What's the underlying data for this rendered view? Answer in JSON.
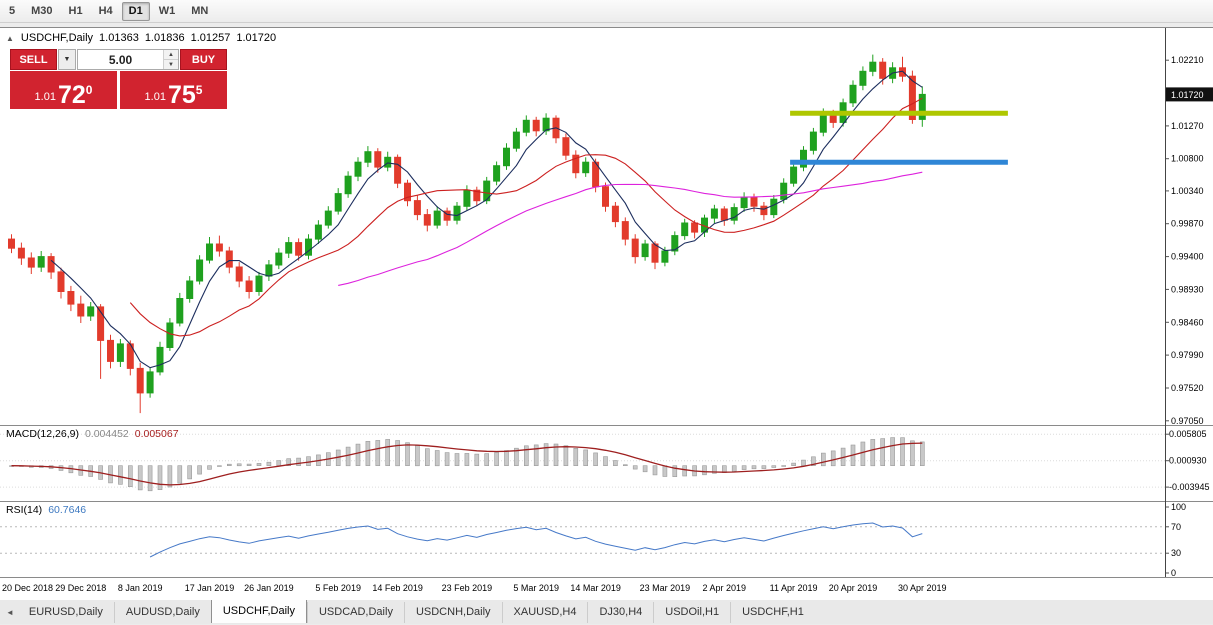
{
  "icons": {
    "collapse_up": "▲",
    "caret_down": "▼",
    "spin_up": "▲",
    "spin_down": "▼",
    "tab_scroll_left": "◄"
  },
  "toolbar": {
    "timeframes": [
      {
        "label": "5",
        "active": false
      },
      {
        "label": "M30",
        "active": false
      },
      {
        "label": "H1",
        "active": false
      },
      {
        "label": "H4",
        "active": false
      },
      {
        "label": "D1",
        "active": true
      },
      {
        "label": "W1",
        "active": false
      },
      {
        "label": "MN",
        "active": false
      }
    ]
  },
  "chart_header": {
    "symbol": "USDCHF,Daily",
    "open": "1.01363",
    "high": "1.01836",
    "low": "1.01257",
    "close": "1.01720"
  },
  "trade_panel": {
    "sell_label": "SELL",
    "buy_label": "BUY",
    "volume": "5.00",
    "sell_quote": {
      "prefix": "1.01",
      "big": "72",
      "sup": "0"
    },
    "buy_quote": {
      "prefix": "1.01",
      "big": "75",
      "sup": "5"
    }
  },
  "chart_data": {
    "type": "candlestick",
    "symbol": "USDCHF",
    "timeframe": "Daily",
    "candles": [
      [
        0.9965,
        0.9972,
        0.9945,
        0.9952
      ],
      [
        0.9952,
        0.996,
        0.9928,
        0.9938
      ],
      [
        0.9938,
        0.9946,
        0.9915,
        0.9925
      ],
      [
        0.9925,
        0.9948,
        0.9918,
        0.994
      ],
      [
        0.994,
        0.9945,
        0.9908,
        0.9918
      ],
      [
        0.9918,
        0.9924,
        0.988,
        0.989
      ],
      [
        0.989,
        0.9898,
        0.9862,
        0.9872
      ],
      [
        0.9872,
        0.9884,
        0.9845,
        0.9855
      ],
      [
        0.9855,
        0.9875,
        0.9848,
        0.9868
      ],
      [
        0.9868,
        0.9872,
        0.9765,
        0.982
      ],
      [
        0.982,
        0.9828,
        0.978,
        0.979
      ],
      [
        0.979,
        0.9822,
        0.9782,
        0.9815
      ],
      [
        0.9815,
        0.982,
        0.977,
        0.978
      ],
      [
        0.978,
        0.9788,
        0.9716,
        0.9745
      ],
      [
        0.9745,
        0.9782,
        0.9738,
        0.9775
      ],
      [
        0.9775,
        0.9818,
        0.977,
        0.981
      ],
      [
        0.981,
        0.9852,
        0.9805,
        0.9845
      ],
      [
        0.9845,
        0.9888,
        0.984,
        0.988
      ],
      [
        0.988,
        0.9912,
        0.9874,
        0.9905
      ],
      [
        0.9905,
        0.9942,
        0.99,
        0.9935
      ],
      [
        0.9935,
        0.9968,
        0.993,
        0.9958
      ],
      [
        0.9958,
        0.997,
        0.994,
        0.9948
      ],
      [
        0.9948,
        0.9954,
        0.9916,
        0.9925
      ],
      [
        0.9925,
        0.9932,
        0.9896,
        0.9905
      ],
      [
        0.9905,
        0.9912,
        0.988,
        0.989
      ],
      [
        0.989,
        0.9918,
        0.9884,
        0.9912
      ],
      [
        0.9912,
        0.9935,
        0.9905,
        0.9928
      ],
      [
        0.9928,
        0.9952,
        0.9922,
        0.9945
      ],
      [
        0.9945,
        0.9968,
        0.9938,
        0.996
      ],
      [
        0.996,
        0.9966,
        0.9934,
        0.9942
      ],
      [
        0.9942,
        0.9972,
        0.9936,
        0.9965
      ],
      [
        0.9965,
        0.9992,
        0.9958,
        0.9985
      ],
      [
        0.9985,
        1.0012,
        0.998,
        1.0005
      ],
      [
        1.0005,
        1.0038,
        1.0,
        1.003
      ],
      [
        1.003,
        1.0062,
        1.0024,
        1.0055
      ],
      [
        1.0055,
        1.0082,
        1.0048,
        1.0075
      ],
      [
        1.0075,
        1.0098,
        1.0068,
        1.009
      ],
      [
        1.009,
        1.0095,
        1.006,
        1.0068
      ],
      [
        1.0068,
        1.009,
        1.0062,
        1.0082
      ],
      [
        1.0082,
        1.0086,
        1.0038,
        1.0045
      ],
      [
        1.0045,
        1.005,
        1.0012,
        1.002
      ],
      [
        1.002,
        1.0028,
        0.9992,
        1.0
      ],
      [
        1.0,
        1.0008,
        0.9976,
        0.9985
      ],
      [
        0.9985,
        1.0012,
        0.998,
        1.0005
      ],
      [
        1.0005,
        1.001,
        0.9984,
        0.9992
      ],
      [
        0.9992,
        1.0018,
        0.9986,
        1.0012
      ],
      [
        1.0012,
        1.0042,
        1.0006,
        1.0035
      ],
      [
        1.0035,
        1.004,
        1.0012,
        1.002
      ],
      [
        1.002,
        1.0054,
        1.0015,
        1.0048
      ],
      [
        1.0048,
        1.0076,
        1.0042,
        1.007
      ],
      [
        1.007,
        1.0102,
        1.0064,
        1.0095
      ],
      [
        1.0095,
        1.0124,
        1.009,
        1.0118
      ],
      [
        1.0118,
        1.0142,
        1.0112,
        1.0135
      ],
      [
        1.0135,
        1.014,
        1.0112,
        1.012
      ],
      [
        1.012,
        1.0145,
        1.0114,
        1.0138
      ],
      [
        1.0138,
        1.0142,
        1.0102,
        1.011
      ],
      [
        1.011,
        1.0116,
        1.0078,
        1.0085
      ],
      [
        1.0085,
        1.0092,
        1.0052,
        1.006
      ],
      [
        1.006,
        1.0082,
        1.0054,
        1.0075
      ],
      [
        1.0075,
        1.008,
        1.0032,
        1.004
      ],
      [
        1.004,
        1.0046,
        1.0004,
        1.0012
      ],
      [
        1.0012,
        1.0018,
        0.9982,
        0.999
      ],
      [
        0.999,
        0.9996,
        0.9956,
        0.9965
      ],
      [
        0.9965,
        0.9972,
        0.993,
        0.994
      ],
      [
        0.994,
        0.9964,
        0.9934,
        0.9958
      ],
      [
        0.9958,
        0.9962,
        0.9922,
        0.9932
      ],
      [
        0.9932,
        0.9954,
        0.9926,
        0.9948
      ],
      [
        0.9948,
        0.9976,
        0.9942,
        0.997
      ],
      [
        0.997,
        0.9994,
        0.9964,
        0.9988
      ],
      [
        0.9988,
        0.9992,
        0.9966,
        0.9975
      ],
      [
        0.9975,
        1.0,
        0.9968,
        0.9995
      ],
      [
        0.9995,
        1.0014,
        0.9988,
        1.0008
      ],
      [
        1.0008,
        1.0012,
        0.9984,
        0.9992
      ],
      [
        0.9992,
        1.0016,
        0.9986,
        1.001
      ],
      [
        1.001,
        1.0032,
        1.0004,
        1.0025
      ],
      [
        1.0025,
        1.003,
        1.0004,
        1.0012
      ],
      [
        1.0012,
        1.0018,
        0.9992,
        1.0
      ],
      [
        1.0,
        1.0028,
        0.9995,
        1.0022
      ],
      [
        1.0022,
        1.0052,
        1.0016,
        1.0045
      ],
      [
        1.0045,
        1.0074,
        1.004,
        1.0068
      ],
      [
        1.0068,
        1.0098,
        1.0062,
        1.0092
      ],
      [
        1.0092,
        1.0124,
        1.0086,
        1.0118
      ],
      [
        1.0118,
        1.0152,
        1.0112,
        1.0145
      ],
      [
        1.0145,
        1.015,
        1.0124,
        1.0132
      ],
      [
        1.0132,
        1.0166,
        1.0126,
        1.016
      ],
      [
        1.016,
        1.0192,
        1.0154,
        1.0185
      ],
      [
        1.0185,
        1.0212,
        1.0178,
        1.0205
      ],
      [
        1.0205,
        1.0229,
        1.0198,
        1.0218
      ],
      [
        1.0218,
        1.0224,
        1.0186,
        1.0195
      ],
      [
        1.0195,
        1.0218,
        1.0188,
        1.021
      ],
      [
        1.021,
        1.0226,
        1.019,
        1.0198
      ],
      [
        1.0198,
        1.0206,
        1.013,
        1.0136
      ],
      [
        1.01363,
        1.01836,
        1.01257,
        1.0172
      ]
    ],
    "x_axis": {
      "labels": [
        "20 Dec 2018",
        "29 Dec 2018",
        "8 Jan 2019",
        "17 Jan 2019",
        "26 Jan 2019",
        "5 Feb 2019",
        "14 Feb 2019",
        "23 Feb 2019",
        "5 Mar 2019",
        "14 Mar 2019",
        "23 Mar 2019",
        "2 Apr 2019",
        "11 Apr 2019",
        "20 Apr 2019",
        "30 Apr 2019"
      ],
      "indices": [
        0,
        7,
        13,
        20,
        26,
        33,
        39,
        46,
        53,
        59,
        66,
        72,
        79,
        85,
        92
      ]
    },
    "y_axis": {
      "ticks": [
        "1.02210",
        "1.01270",
        "1.00800",
        "1.00340",
        "0.99870",
        "0.99400",
        "0.98930",
        "0.98460",
        "0.97990",
        "0.97520",
        "0.97050"
      ],
      "current": "1.01720",
      "price_top": 1.0267,
      "price_bottom": 0.9699
    },
    "colors": {
      "up": "#1fa11f",
      "down": "#e23b2c",
      "ma_fast": "#1c2e5e",
      "ma_mid": "#cc2020",
      "ma_slow": "#dd22dd",
      "level_yellow": "#afc700",
      "level_blue": "#2f86d6",
      "macd_hist": "#c8c8c8",
      "macd_signal": "#9e1f1f",
      "rsi_line": "#4679c8"
    },
    "moving_averages": [
      {
        "period": 5,
        "color_key": "ma_fast"
      },
      {
        "period": 13,
        "color_key": "ma_mid"
      },
      {
        "period": 34,
        "color_key": "ma_slow"
      }
    ],
    "levels": [
      {
        "price": 1.0145,
        "from_bar": 79,
        "to_bar": 101,
        "color_key": "level_yellow"
      },
      {
        "price": 1.0075,
        "from_bar": 79,
        "to_bar": 101,
        "color_key": "level_blue"
      }
    ],
    "indicators": {
      "macd": {
        "label": "MACD(12,26,9)",
        "value_main": "0.004452",
        "value_signal": "0.005067",
        "fast": 12,
        "slow": 26,
        "signal": 9,
        "range": [
          -0.0065,
          0.0075
        ],
        "ticks": [
          {
            "v": 0.005805,
            "label": "0.005805"
          },
          {
            "v": 0.00093,
            "label": "0.000930"
          },
          {
            "v": -0.003945,
            "label": "-0.003945"
          }
        ]
      },
      "rsi": {
        "label": "RSI(14)",
        "value": "60.7646",
        "period": 14,
        "levels": [
          70,
          30
        ],
        "ticks": [
          {
            "v": 100,
            "label": "100"
          },
          {
            "v": 70,
            "label": "70"
          },
          {
            "v": 30,
            "label": "30"
          },
          {
            "v": 0,
            "label": "0"
          }
        ]
      }
    }
  },
  "tabs": {
    "items": [
      {
        "label": "EURUSD,Daily",
        "active": false
      },
      {
        "label": "AUDUSD,Daily",
        "active": false
      },
      {
        "label": "USDCHF,Daily",
        "active": true
      },
      {
        "label": "USDCAD,Daily",
        "active": false
      },
      {
        "label": "USDCNH,Daily",
        "active": false
      },
      {
        "label": "XAUUSD,H4",
        "active": false
      },
      {
        "label": "DJ30,H4",
        "active": false
      },
      {
        "label": "USDOil,H1",
        "active": false
      },
      {
        "label": "USDCHF,H1",
        "active": false
      }
    ]
  }
}
